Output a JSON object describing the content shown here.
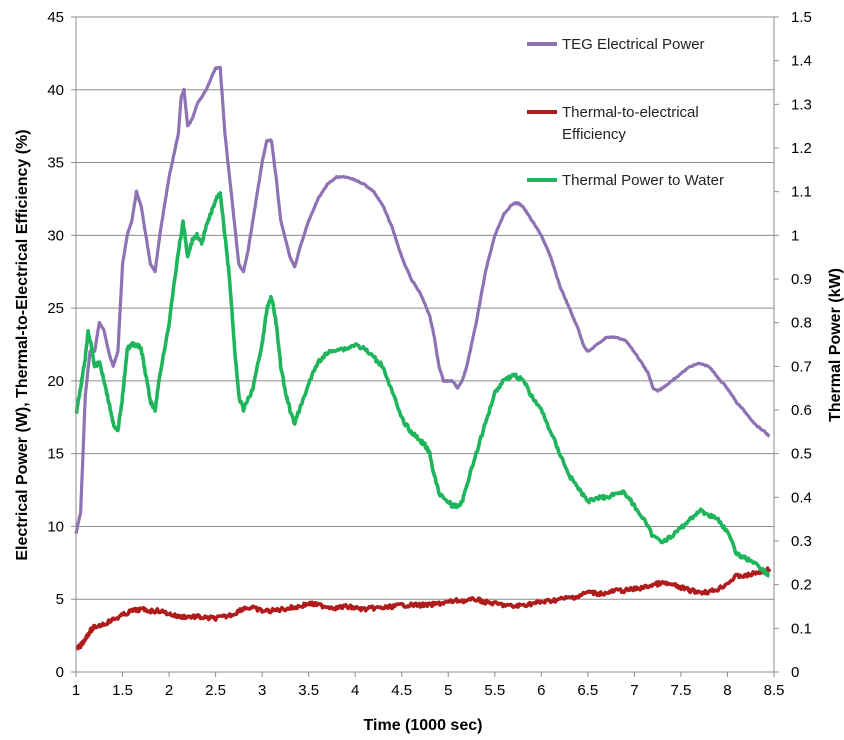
{
  "chart_data": {
    "type": "line",
    "title": "",
    "xlabel": "Time  (1000 sec)",
    "ylabel_left": "Electrical Power (W), Thermal-to-Electrical  Efficiency (%)",
    "ylabel_right": "Thermal Power (kW)",
    "xlim": [
      1,
      8.5
    ],
    "ylim_left": [
      0,
      45
    ],
    "ylim_right": [
      0,
      1.5
    ],
    "x_ticks": [
      "1",
      "1.5",
      "2",
      "2.5",
      "3",
      "3.5",
      "4",
      "4.5",
      "5",
      "5.5",
      "6",
      "6.5",
      "7",
      "7.5",
      "8",
      "8.5"
    ],
    "y_left_ticks": [
      "0",
      "5",
      "10",
      "15",
      "20",
      "25",
      "30",
      "35",
      "40",
      "45"
    ],
    "y_right_ticks": [
      "0",
      "0.1",
      "0.2",
      "0.3",
      "0.4",
      "0.5",
      "0.6",
      "0.7",
      "0.8",
      "0.9",
      "1",
      "1.1",
      "1.2",
      "1.3",
      "1.4",
      "1.5"
    ],
    "grid": "horizontal",
    "legend_position": "top-right",
    "series": [
      {
        "name": "TEG Electrical Power",
        "axis": "left",
        "color": "#8e72b4",
        "points": [
          [
            1.0,
            9.5
          ],
          [
            1.05,
            11
          ],
          [
            1.1,
            19
          ],
          [
            1.15,
            22
          ],
          [
            1.2,
            22
          ],
          [
            1.25,
            24
          ],
          [
            1.3,
            23.5
          ],
          [
            1.35,
            22
          ],
          [
            1.4,
            21
          ],
          [
            1.45,
            22
          ],
          [
            1.5,
            28
          ],
          [
            1.55,
            30
          ],
          [
            1.6,
            31
          ],
          [
            1.65,
            33
          ],
          [
            1.7,
            32
          ],
          [
            1.75,
            30
          ],
          [
            1.8,
            28
          ],
          [
            1.85,
            27.5
          ],
          [
            1.9,
            30
          ],
          [
            1.95,
            32
          ],
          [
            2.0,
            34
          ],
          [
            2.05,
            35.5
          ],
          [
            2.1,
            37
          ],
          [
            2.13,
            39.5
          ],
          [
            2.16,
            40
          ],
          [
            2.2,
            37.5
          ],
          [
            2.25,
            38
          ],
          [
            2.3,
            39
          ],
          [
            2.4,
            40
          ],
          [
            2.5,
            41.5
          ],
          [
            2.55,
            41.5
          ],
          [
            2.6,
            37
          ],
          [
            2.65,
            34
          ],
          [
            2.7,
            31
          ],
          [
            2.75,
            28
          ],
          [
            2.8,
            27.5
          ],
          [
            2.85,
            29
          ],
          [
            2.9,
            31
          ],
          [
            2.95,
            33
          ],
          [
            3.0,
            35
          ],
          [
            3.05,
            36.5
          ],
          [
            3.1,
            36.5
          ],
          [
            3.15,
            34
          ],
          [
            3.2,
            31
          ],
          [
            3.3,
            28.5
          ],
          [
            3.35,
            27.8
          ],
          [
            3.4,
            29
          ],
          [
            3.5,
            31
          ],
          [
            3.6,
            32.5
          ],
          [
            3.7,
            33.5
          ],
          [
            3.8,
            34
          ],
          [
            3.9,
            34
          ],
          [
            4.0,
            33.8
          ],
          [
            4.1,
            33.5
          ],
          [
            4.2,
            33
          ],
          [
            4.3,
            32
          ],
          [
            4.4,
            30.5
          ],
          [
            4.5,
            28.5
          ],
          [
            4.6,
            27
          ],
          [
            4.7,
            26
          ],
          [
            4.8,
            24.5
          ],
          [
            4.85,
            23
          ],
          [
            4.9,
            21
          ],
          [
            4.95,
            20
          ],
          [
            5.0,
            20
          ],
          [
            5.05,
            20
          ],
          [
            5.1,
            19.5
          ],
          [
            5.15,
            20
          ],
          [
            5.2,
            21
          ],
          [
            5.3,
            24
          ],
          [
            5.4,
            27.5
          ],
          [
            5.5,
            30
          ],
          [
            5.6,
            31.5
          ],
          [
            5.7,
            32.2
          ],
          [
            5.75,
            32.2
          ],
          [
            5.8,
            32
          ],
          [
            5.9,
            31
          ],
          [
            6.0,
            30
          ],
          [
            6.1,
            28.5
          ],
          [
            6.2,
            26.5
          ],
          [
            6.3,
            25
          ],
          [
            6.4,
            23.5
          ],
          [
            6.45,
            22.5
          ],
          [
            6.5,
            22
          ],
          [
            6.6,
            22.5
          ],
          [
            6.7,
            23
          ],
          [
            6.8,
            23
          ],
          [
            6.9,
            22.8
          ],
          [
            7.0,
            22
          ],
          [
            7.1,
            21
          ],
          [
            7.15,
            20.5
          ],
          [
            7.2,
            19.5
          ],
          [
            7.25,
            19.3
          ],
          [
            7.3,
            19.5
          ],
          [
            7.4,
            20
          ],
          [
            7.5,
            20.5
          ],
          [
            7.6,
            21
          ],
          [
            7.7,
            21.2
          ],
          [
            7.8,
            21
          ],
          [
            7.9,
            20.2
          ],
          [
            8.0,
            19.5
          ],
          [
            8.1,
            18.5
          ],
          [
            8.2,
            17.8
          ],
          [
            8.3,
            17
          ],
          [
            8.4,
            16.5
          ],
          [
            8.45,
            16.2
          ]
        ]
      },
      {
        "name": "Thermal-to-electrical Efficiency",
        "axis": "left",
        "color": "#b01c1c",
        "points": [
          [
            1.0,
            1.5
          ],
          [
            1.05,
            1.8
          ],
          [
            1.1,
            2.3
          ],
          [
            1.15,
            2.8
          ],
          [
            1.2,
            3.1
          ],
          [
            1.3,
            3.3
          ],
          [
            1.4,
            3.6
          ],
          [
            1.5,
            3.9
          ],
          [
            1.6,
            4.2
          ],
          [
            1.7,
            4.3
          ],
          [
            1.8,
            4.2
          ],
          [
            1.9,
            4.2
          ],
          [
            2.0,
            4.0
          ],
          [
            2.1,
            3.8
          ],
          [
            2.2,
            3.8
          ],
          [
            2.3,
            3.8
          ],
          [
            2.4,
            3.7
          ],
          [
            2.5,
            3.7
          ],
          [
            2.6,
            3.8
          ],
          [
            2.7,
            4.0
          ],
          [
            2.8,
            4.4
          ],
          [
            2.9,
            4.4
          ],
          [
            3.0,
            4.2
          ],
          [
            3.1,
            4.2
          ],
          [
            3.2,
            4.3
          ],
          [
            3.3,
            4.4
          ],
          [
            3.4,
            4.5
          ],
          [
            3.5,
            4.7
          ],
          [
            3.6,
            4.6
          ],
          [
            3.7,
            4.5
          ],
          [
            3.8,
            4.4
          ],
          [
            3.9,
            4.5
          ],
          [
            4.0,
            4.4
          ],
          [
            4.1,
            4.3
          ],
          [
            4.2,
            4.4
          ],
          [
            4.3,
            4.4
          ],
          [
            4.4,
            4.5
          ],
          [
            4.5,
            4.6
          ],
          [
            4.6,
            4.6
          ],
          [
            4.7,
            4.6
          ],
          [
            4.8,
            4.6
          ],
          [
            4.9,
            4.7
          ],
          [
            5.0,
            4.8
          ],
          [
            5.1,
            4.9
          ],
          [
            5.2,
            4.9
          ],
          [
            5.3,
            5.0
          ],
          [
            5.4,
            4.8
          ],
          [
            5.5,
            4.7
          ],
          [
            5.6,
            4.6
          ],
          [
            5.7,
            4.5
          ],
          [
            5.8,
            4.6
          ],
          [
            5.9,
            4.7
          ],
          [
            6.0,
            4.8
          ],
          [
            6.1,
            4.9
          ],
          [
            6.2,
            5.0
          ],
          [
            6.3,
            5.1
          ],
          [
            6.4,
            5.2
          ],
          [
            6.5,
            5.5
          ],
          [
            6.6,
            5.4
          ],
          [
            6.7,
            5.4
          ],
          [
            6.8,
            5.6
          ],
          [
            6.9,
            5.6
          ],
          [
            7.0,
            5.7
          ],
          [
            7.1,
            5.8
          ],
          [
            7.2,
            6.0
          ],
          [
            7.3,
            6.1
          ],
          [
            7.4,
            6.0
          ],
          [
            7.5,
            5.8
          ],
          [
            7.6,
            5.6
          ],
          [
            7.7,
            5.5
          ],
          [
            7.8,
            5.5
          ],
          [
            7.9,
            5.7
          ],
          [
            8.0,
            6.1
          ],
          [
            8.1,
            6.6
          ],
          [
            8.2,
            6.6
          ],
          [
            8.3,
            6.8
          ],
          [
            8.4,
            6.9
          ],
          [
            8.45,
            7.1
          ]
        ]
      },
      {
        "name": "Thermal Power to Water",
        "axis": "right",
        "color": "#1fb55c",
        "points": [
          [
            1.0,
            0.59
          ],
          [
            1.05,
            0.65
          ],
          [
            1.1,
            0.72
          ],
          [
            1.13,
            0.78
          ],
          [
            1.16,
            0.75
          ],
          [
            1.2,
            0.7
          ],
          [
            1.25,
            0.71
          ],
          [
            1.3,
            0.67
          ],
          [
            1.35,
            0.62
          ],
          [
            1.4,
            0.57
          ],
          [
            1.45,
            0.55
          ],
          [
            1.5,
            0.63
          ],
          [
            1.55,
            0.74
          ],
          [
            1.6,
            0.75
          ],
          [
            1.65,
            0.75
          ],
          [
            1.7,
            0.74
          ],
          [
            1.75,
            0.68
          ],
          [
            1.8,
            0.62
          ],
          [
            1.85,
            0.6
          ],
          [
            1.9,
            0.68
          ],
          [
            2.0,
            0.8
          ],
          [
            2.1,
            0.96
          ],
          [
            2.15,
            1.03
          ],
          [
            2.2,
            0.95
          ],
          [
            2.25,
            0.99
          ],
          [
            2.3,
            1.0
          ],
          [
            2.35,
            0.98
          ],
          [
            2.4,
            1.02
          ],
          [
            2.45,
            1.05
          ],
          [
            2.5,
            1.08
          ],
          [
            2.55,
            1.1
          ],
          [
            2.6,
            1.0
          ],
          [
            2.65,
            0.9
          ],
          [
            2.7,
            0.75
          ],
          [
            2.75,
            0.63
          ],
          [
            2.8,
            0.6
          ],
          [
            2.9,
            0.65
          ],
          [
            3.0,
            0.75
          ],
          [
            3.05,
            0.83
          ],
          [
            3.1,
            0.86
          ],
          [
            3.15,
            0.8
          ],
          [
            3.2,
            0.7
          ],
          [
            3.25,
            0.64
          ],
          [
            3.3,
            0.6
          ],
          [
            3.35,
            0.57
          ],
          [
            3.4,
            0.6
          ],
          [
            3.5,
            0.66
          ],
          [
            3.6,
            0.71
          ],
          [
            3.7,
            0.73
          ],
          [
            3.8,
            0.74
          ],
          [
            3.9,
            0.74
          ],
          [
            4.0,
            0.75
          ],
          [
            4.1,
            0.74
          ],
          [
            4.2,
            0.72
          ],
          [
            4.3,
            0.7
          ],
          [
            4.4,
            0.64
          ],
          [
            4.5,
            0.58
          ],
          [
            4.6,
            0.55
          ],
          [
            4.7,
            0.53
          ],
          [
            4.75,
            0.52
          ],
          [
            4.8,
            0.5
          ],
          [
            4.85,
            0.45
          ],
          [
            4.9,
            0.41
          ],
          [
            5.0,
            0.39
          ],
          [
            5.05,
            0.38
          ],
          [
            5.1,
            0.38
          ],
          [
            5.15,
            0.39
          ],
          [
            5.2,
            0.43
          ],
          [
            5.3,
            0.5
          ],
          [
            5.4,
            0.57
          ],
          [
            5.5,
            0.64
          ],
          [
            5.6,
            0.67
          ],
          [
            5.7,
            0.68
          ],
          [
            5.8,
            0.67
          ],
          [
            5.9,
            0.63
          ],
          [
            6.0,
            0.6
          ],
          [
            6.1,
            0.55
          ],
          [
            6.2,
            0.5
          ],
          [
            6.3,
            0.45
          ],
          [
            6.4,
            0.42
          ],
          [
            6.5,
            0.39
          ],
          [
            6.6,
            0.4
          ],
          [
            6.7,
            0.4
          ],
          [
            6.8,
            0.41
          ],
          [
            6.9,
            0.41
          ],
          [
            7.0,
            0.38
          ],
          [
            7.1,
            0.35
          ],
          [
            7.2,
            0.31
          ],
          [
            7.3,
            0.3
          ],
          [
            7.4,
            0.31
          ],
          [
            7.5,
            0.33
          ],
          [
            7.6,
            0.35
          ],
          [
            7.7,
            0.37
          ],
          [
            7.8,
            0.36
          ],
          [
            7.9,
            0.35
          ],
          [
            8.0,
            0.32
          ],
          [
            8.1,
            0.27
          ],
          [
            8.2,
            0.26
          ],
          [
            8.3,
            0.25
          ],
          [
            8.4,
            0.23
          ],
          [
            8.45,
            0.22
          ]
        ]
      }
    ]
  }
}
